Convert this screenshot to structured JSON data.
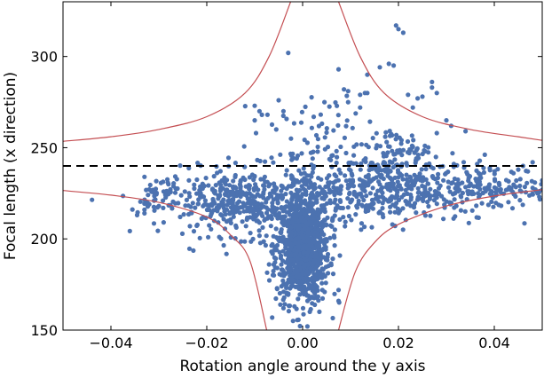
{
  "chart_data": {
    "type": "scatter",
    "xlabel": "Rotation angle around the y axis",
    "ylabel": "Focal length (x direction)",
    "xlim": [
      -0.05,
      0.05
    ],
    "ylim": [
      150,
      330
    ],
    "xticks": [
      -0.04,
      -0.02,
      0.0,
      0.02,
      0.04
    ],
    "xtick_labels": [
      "−0.04",
      "−0.02",
      "0.00",
      "0.02",
      "0.04"
    ],
    "yticks": [
      150,
      200,
      250,
      300
    ],
    "ytick_labels": [
      "150",
      "200",
      "250",
      "300"
    ],
    "grid": false,
    "legend": "none",
    "reference_line": {
      "y": 240,
      "style": "dashed",
      "color": "#000000"
    },
    "boundary_curves": {
      "color": "#c44e52",
      "description": "four hyperbola-like branches",
      "upper_left": [
        [
          -0.05,
          253.5
        ],
        [
          -0.04,
          256
        ],
        [
          -0.03,
          260
        ],
        [
          -0.02,
          267
        ],
        [
          -0.012,
          280
        ],
        [
          -0.007,
          300
        ],
        [
          -0.0025,
          330
        ]
      ],
      "upper_right": [
        [
          0.0075,
          330
        ],
        [
          0.012,
          300
        ],
        [
          0.017,
          280
        ],
        [
          0.025,
          267
        ],
        [
          0.035,
          260
        ],
        [
          0.045,
          256
        ],
        [
          0.05,
          254
        ]
      ],
      "lower_left": [
        [
          -0.05,
          226.5
        ],
        [
          -0.04,
          224
        ],
        [
          -0.03,
          220
        ],
        [
          -0.02,
          212
        ],
        [
          -0.015,
          202
        ],
        [
          -0.011,
          188
        ],
        [
          -0.0075,
          150
        ]
      ],
      "lower_right": [
        [
          0.0075,
          150
        ],
        [
          0.011,
          182
        ],
        [
          0.015,
          198
        ],
        [
          0.02,
          208
        ],
        [
          0.03,
          218
        ],
        [
          0.04,
          223.5
        ],
        [
          0.05,
          227
        ]
      ]
    },
    "series": [
      {
        "color": "#4c72b0",
        "clusters": [
          {
            "cx": 0.0,
            "cy": 195,
            "sx": 0.0028,
            "sy": 15,
            "n": 900
          },
          {
            "cx": -0.012,
            "cy": 220,
            "sx": 0.0085,
            "sy": 9,
            "n": 450
          },
          {
            "cx": 0.018,
            "cy": 228,
            "sx": 0.01,
            "sy": 9,
            "n": 450
          },
          {
            "cx": 0.04,
            "cy": 228,
            "sx": 0.006,
            "sy": 6,
            "n": 120
          },
          {
            "cx": -0.03,
            "cy": 225,
            "sx": 0.003,
            "sy": 5,
            "n": 40
          },
          {
            "cx": 0.005,
            "cy": 245,
            "sx": 0.007,
            "sy": 18,
            "n": 120
          },
          {
            "cx": 0.02,
            "cy": 250,
            "sx": 0.003,
            "sy": 4,
            "n": 50
          }
        ],
        "points": [
          [
            -0.033,
            216
          ],
          [
            -0.033,
            214
          ],
          [
            -0.032,
            219
          ],
          [
            -0.031,
            221
          ],
          [
            -0.03,
            218
          ],
          [
            -0.029,
            226
          ],
          [
            -0.028,
            230
          ],
          [
            -0.033,
            234
          ],
          [
            -0.003,
            302
          ],
          [
            0.0075,
            293
          ],
          [
            0.0135,
            290
          ],
          [
            0.0095,
            281
          ],
          [
            0.0095,
            275
          ],
          [
            0.012,
            279
          ],
          [
            0.012,
            272
          ],
          [
            0.013,
            280
          ],
          [
            0.0135,
            280
          ],
          [
            0.0195,
            317
          ],
          [
            0.02,
            315
          ],
          [
            0.021,
            313
          ],
          [
            0.018,
            296
          ],
          [
            0.019,
            295
          ],
          [
            0.027,
            286
          ],
          [
            0.027,
            283
          ],
          [
            0.028,
            280
          ],
          [
            0.024,
            277
          ],
          [
            0.023,
            272
          ],
          [
            0.022,
            279
          ],
          [
            0.025,
            278
          ],
          [
            0.034,
            259
          ],
          [
            0.03,
            265
          ],
          [
            0.031,
            262
          ],
          [
            0.028,
            258
          ],
          [
            -0.01,
            273
          ],
          [
            -0.009,
            270
          ],
          [
            -0.0085,
            268
          ],
          [
            -0.01,
            265
          ],
          [
            -0.0055,
            260
          ],
          [
            -0.005,
            276
          ],
          [
            -0.004,
            270
          ],
          [
            0.05,
            232
          ],
          [
            0.05,
            227
          ],
          [
            0.049,
            225
          ],
          [
            0.048,
            228
          ],
          [
            0.047,
            237
          ],
          [
            0.046,
            240
          ],
          [
            0.048,
            242
          ],
          [
            0.045,
            238
          ],
          [
            0.044,
            236
          ],
          [
            -0.0065,
            193
          ],
          [
            -0.003,
            170
          ],
          [
            -0.004,
            162
          ],
          [
            0.0015,
            160
          ],
          [
            -0.002,
            155
          ],
          [
            0.001,
            152
          ],
          [
            0.0035,
            160
          ],
          [
            0.0075,
            172
          ],
          [
            0.0075,
            166
          ],
          [
            -0.006,
            180
          ],
          [
            -0.007,
            186
          ]
        ]
      }
    ]
  }
}
